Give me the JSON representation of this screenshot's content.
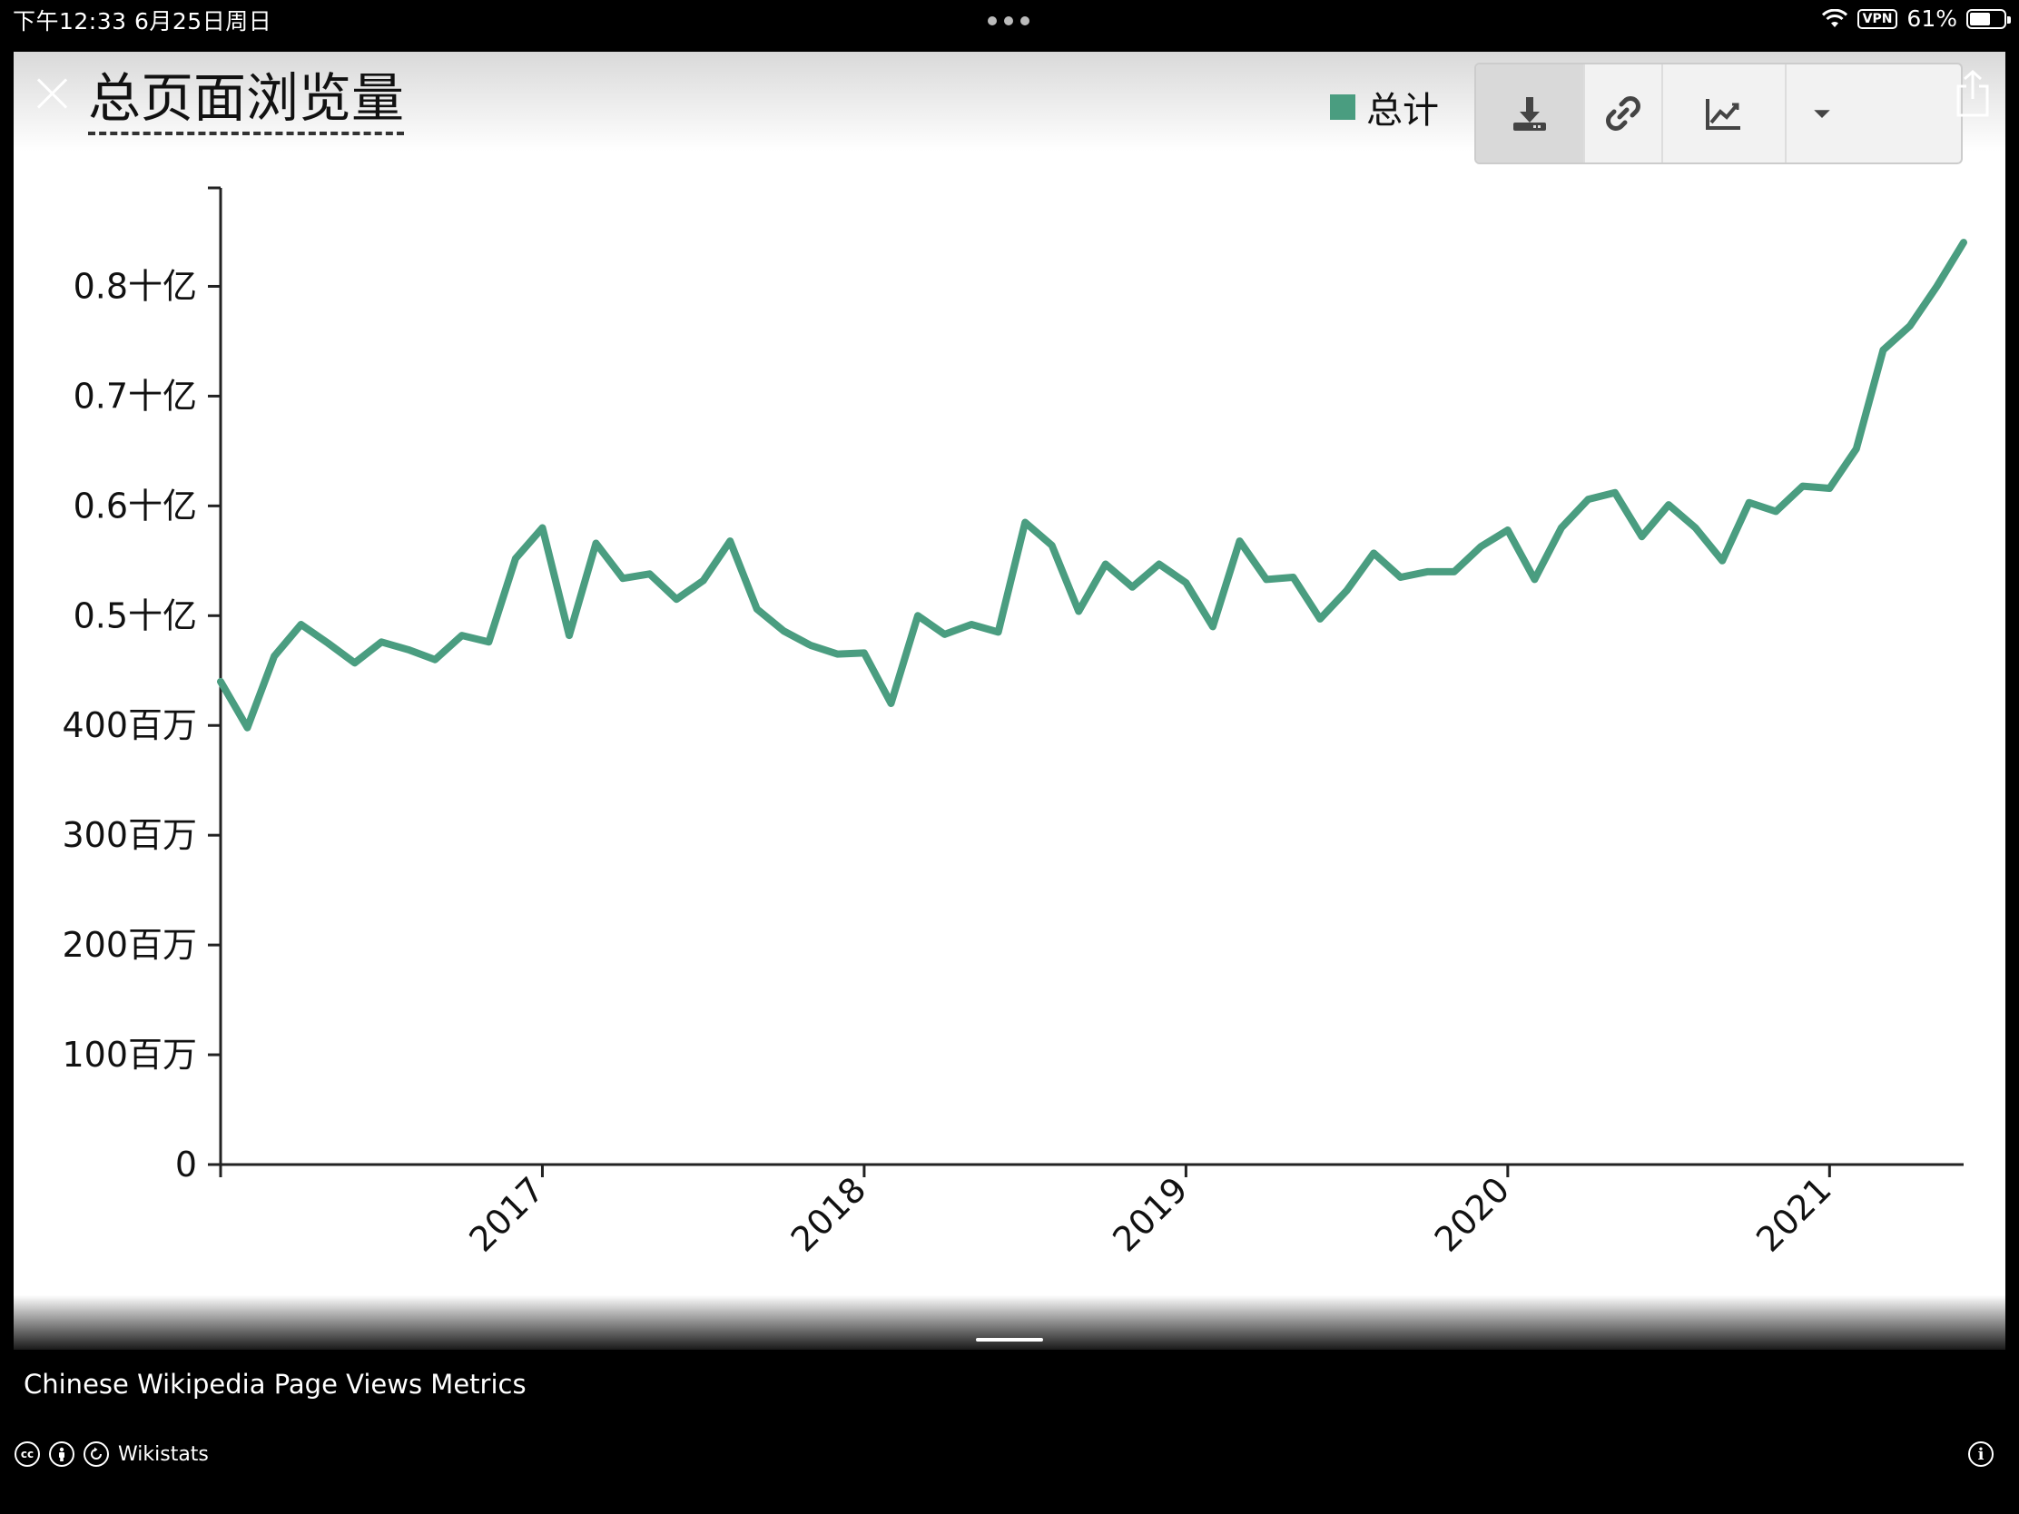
{
  "status_bar": {
    "time": "下午12:33   6月25日周日",
    "vpn": "VPN",
    "battery": "61%",
    "battery_level": 0.61
  },
  "colors": {
    "series": "#4a9d80",
    "axis": "#222222",
    "text": "#111111"
  },
  "toolbar": {
    "icons": [
      "download-icon",
      "link-icon",
      "chart-line-icon",
      "caret-down-icon"
    ]
  },
  "chart_data": {
    "type": "line",
    "title": "总页面浏览量",
    "legend": [
      "总计"
    ],
    "legend_position": "top-right",
    "grid": false,
    "yticks": [
      0,
      100000000,
      200000000,
      300000000,
      400000000,
      500000000,
      600000000,
      700000000,
      800000000
    ],
    "ytick_labels": [
      "0",
      "100百万",
      "200百万",
      "300百万",
      "400百万",
      "0.5十亿",
      "0.6十亿",
      "0.7十亿",
      "0.8十亿"
    ],
    "ylim": [
      0,
      850000000
    ],
    "xlim": [
      "2016-01",
      "2021-06"
    ],
    "xtick_labels": [
      "2017",
      "2018",
      "2019",
      "2020",
      "2021"
    ],
    "xticks": [
      "2017-01",
      "2018-01",
      "2019-01",
      "2020-01",
      "2021-01"
    ],
    "series": [
      {
        "name": "总计",
        "x": [
          "2016-01",
          "2016-02",
          "2016-03",
          "2016-04",
          "2016-05",
          "2016-06",
          "2016-07",
          "2016-08",
          "2016-09",
          "2016-10",
          "2016-11",
          "2016-12",
          "2017-01",
          "2017-02",
          "2017-03",
          "2017-04",
          "2017-05",
          "2017-06",
          "2017-07",
          "2017-08",
          "2017-09",
          "2017-10",
          "2017-11",
          "2017-12",
          "2018-01",
          "2018-02",
          "2018-03",
          "2018-04",
          "2018-05",
          "2018-06",
          "2018-07",
          "2018-08",
          "2018-09",
          "2018-10",
          "2018-11",
          "2018-12",
          "2019-01",
          "2019-02",
          "2019-03",
          "2019-04",
          "2019-05",
          "2019-06",
          "2019-07",
          "2019-08",
          "2019-09",
          "2019-10",
          "2019-11",
          "2019-12",
          "2020-01",
          "2020-02",
          "2020-03",
          "2020-04",
          "2020-05",
          "2020-06",
          "2020-07",
          "2020-08",
          "2020-09",
          "2020-10",
          "2020-11",
          "2020-12",
          "2021-01",
          "2021-02",
          "2021-03",
          "2021-04",
          "2021-05",
          "2021-06"
        ],
        "values": [
          440000000,
          398000000,
          463000000,
          492000000,
          475000000,
          457000000,
          476000000,
          469000000,
          460000000,
          482000000,
          476000000,
          552000000,
          580000000,
          482000000,
          566000000,
          534000000,
          538000000,
          515000000,
          532000000,
          568000000,
          506000000,
          486000000,
          473000000,
          465000000,
          466000000,
          420000000,
          500000000,
          483000000,
          492000000,
          485000000,
          585000000,
          564000000,
          504000000,
          547000000,
          526000000,
          547000000,
          530000000,
          490000000,
          568000000,
          533000000,
          535000000,
          497000000,
          523000000,
          557000000,
          535000000,
          540000000,
          540000000,
          563000000,
          578000000,
          533000000,
          580000000,
          606000000,
          612000000,
          572000000,
          601000000,
          580000000,
          550000000,
          603000000,
          595000000,
          618000000,
          616000000,
          652000000,
          742000000,
          764000000,
          800000000,
          840000000
        ]
      }
    ]
  },
  "caption": {
    "title": "Chinese Wikipedia Page Views Metrics",
    "source": "Wikistats",
    "license_icons": [
      "cc-icon",
      "by-icon",
      "sa-icon"
    ]
  }
}
